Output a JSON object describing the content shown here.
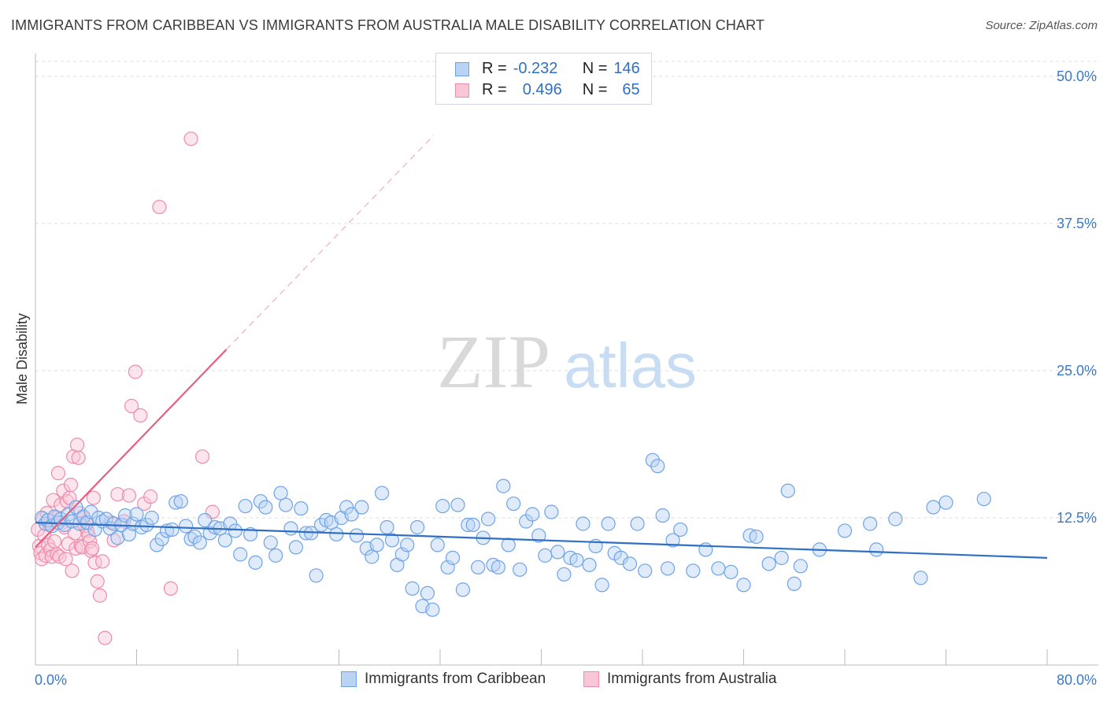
{
  "title": "IMMIGRANTS FROM CARIBBEAN VS IMMIGRANTS FROM AUSTRALIA MALE DISABILITY CORRELATION CHART",
  "source": "Source: ZipAtlas.com",
  "watermark": {
    "zip": "ZIP",
    "atlas": "atlas"
  },
  "stats": [
    {
      "r_label": "R =",
      "r": "-0.232",
      "n_label": "N =",
      "n": "146"
    },
    {
      "r_label": "R =",
      "r": "0.496",
      "n_label": "N =",
      "n": "65"
    }
  ],
  "legend": [
    {
      "label": "Immigrants from Caribbean",
      "color": "#6fa3e6",
      "fill": "#b9d3f4"
    },
    {
      "label": "Immigrants from Australia",
      "color": "#ee8cab",
      "fill": "#f8c6d6"
    }
  ],
  "chart_data": {
    "type": "scatter",
    "title": "IMMIGRANTS FROM CARIBBEAN VS IMMIGRANTS FROM AUSTRALIA MALE DISABILITY CORRELATION CHART",
    "xlabel": "",
    "ylabel": "Male Disability",
    "xlim": [
      0,
      80
    ],
    "ylim": [
      0,
      50
    ],
    "x_tick_labels": [
      "0.0%",
      "80.0%"
    ],
    "y_ticks": [
      12.5,
      25.0,
      37.5,
      50.0
    ],
    "y_tick_labels": [
      "12.5%",
      "25.0%",
      "37.5%",
      "50.0%"
    ],
    "grid": "horizontal dashed",
    "legend_position": "bottom",
    "series": [
      {
        "name": "Immigrants from Caribbean",
        "color": "#2f6fc4",
        "trend": {
          "x0": 0,
          "y0": 12.1,
          "x1": 80,
          "y1": 9.1
        },
        "points": [
          [
            0.5,
            12.5
          ],
          [
            0.8,
            12.0
          ],
          [
            1.0,
            12.3
          ],
          [
            1.3,
            11.8
          ],
          [
            1.5,
            12.6
          ],
          [
            1.8,
            12.1
          ],
          [
            2.0,
            12.4
          ],
          [
            2.3,
            11.9
          ],
          [
            2.6,
            12.8
          ],
          [
            2.9,
            12.2
          ],
          [
            3.2,
            13.4
          ],
          [
            3.5,
            12.0
          ],
          [
            3.8,
            12.6
          ],
          [
            4.1,
            12.1
          ],
          [
            4.4,
            13.0
          ],
          [
            4.7,
            11.5
          ],
          [
            5.0,
            12.5
          ],
          [
            5.3,
            12.2
          ],
          [
            5.6,
            12.4
          ],
          [
            5.9,
            11.6
          ],
          [
            6.2,
            12.0
          ],
          [
            6.5,
            10.8
          ],
          [
            6.8,
            11.9
          ],
          [
            7.1,
            12.7
          ],
          [
            7.4,
            11.1
          ],
          [
            7.7,
            12.0
          ],
          [
            8.0,
            12.8
          ],
          [
            8.4,
            11.7
          ],
          [
            8.8,
            11.9
          ],
          [
            9.2,
            12.5
          ],
          [
            9.6,
            10.2
          ],
          [
            10.0,
            10.7
          ],
          [
            10.4,
            11.4
          ],
          [
            10.8,
            11.5
          ],
          [
            11.1,
            13.8
          ],
          [
            11.5,
            13.9
          ],
          [
            11.9,
            11.8
          ],
          [
            12.3,
            10.7
          ],
          [
            12.6,
            10.9
          ],
          [
            13.0,
            10.4
          ],
          [
            13.4,
            12.3
          ],
          [
            13.8,
            11.2
          ],
          [
            14.2,
            11.7
          ],
          [
            14.6,
            11.6
          ],
          [
            15.0,
            10.6
          ],
          [
            15.4,
            12.0
          ],
          [
            15.8,
            11.4
          ],
          [
            16.2,
            9.4
          ],
          [
            16.6,
            13.5
          ],
          [
            17.0,
            11.1
          ],
          [
            17.4,
            8.7
          ],
          [
            17.8,
            13.9
          ],
          [
            18.2,
            13.4
          ],
          [
            18.6,
            10.4
          ],
          [
            19.0,
            9.3
          ],
          [
            19.4,
            14.6
          ],
          [
            19.8,
            13.6
          ],
          [
            20.2,
            11.6
          ],
          [
            20.6,
            10.0
          ],
          [
            21.0,
            13.3
          ],
          [
            21.4,
            11.2
          ],
          [
            21.8,
            11.2
          ],
          [
            22.2,
            7.6
          ],
          [
            22.6,
            11.9
          ],
          [
            23.0,
            12.3
          ],
          [
            23.4,
            12.1
          ],
          [
            23.8,
            11.1
          ],
          [
            24.2,
            12.5
          ],
          [
            24.6,
            13.4
          ],
          [
            25.0,
            12.8
          ],
          [
            25.4,
            11.0
          ],
          [
            25.8,
            13.4
          ],
          [
            26.2,
            9.9
          ],
          [
            26.6,
            9.2
          ],
          [
            27.0,
            10.2
          ],
          [
            27.4,
            14.6
          ],
          [
            27.8,
            11.7
          ],
          [
            28.2,
            10.6
          ],
          [
            28.6,
            8.5
          ],
          [
            29.0,
            9.4
          ],
          [
            29.4,
            10.2
          ],
          [
            29.8,
            6.5
          ],
          [
            30.2,
            11.7
          ],
          [
            30.6,
            5.0
          ],
          [
            31.0,
            6.1
          ],
          [
            31.4,
            4.7
          ],
          [
            31.8,
            10.2
          ],
          [
            32.2,
            13.5
          ],
          [
            32.6,
            8.3
          ],
          [
            33.0,
            9.1
          ],
          [
            33.4,
            13.6
          ],
          [
            33.8,
            6.4
          ],
          [
            34.2,
            11.9
          ],
          [
            34.6,
            11.9
          ],
          [
            35.0,
            8.3
          ],
          [
            35.4,
            10.8
          ],
          [
            35.8,
            12.4
          ],
          [
            36.2,
            8.5
          ],
          [
            36.6,
            8.3
          ],
          [
            37.0,
            15.2
          ],
          [
            37.4,
            10.2
          ],
          [
            37.8,
            13.7
          ],
          [
            38.3,
            8.1
          ],
          [
            38.8,
            12.2
          ],
          [
            39.3,
            12.8
          ],
          [
            39.8,
            11.0
          ],
          [
            40.3,
            9.3
          ],
          [
            40.8,
            13.0
          ],
          [
            41.3,
            9.6
          ],
          [
            41.8,
            7.7
          ],
          [
            42.3,
            9.1
          ],
          [
            42.8,
            8.9
          ],
          [
            43.3,
            12.0
          ],
          [
            43.8,
            8.5
          ],
          [
            44.3,
            10.1
          ],
          [
            44.8,
            6.8
          ],
          [
            45.3,
            12.0
          ],
          [
            45.8,
            9.5
          ],
          [
            46.3,
            9.1
          ],
          [
            47.0,
            8.6
          ],
          [
            47.6,
            12.0
          ],
          [
            48.2,
            8.0
          ],
          [
            48.8,
            17.4
          ],
          [
            49.2,
            16.9
          ],
          [
            49.6,
            12.7
          ],
          [
            50.0,
            8.2
          ],
          [
            50.4,
            10.6
          ],
          [
            51.0,
            11.5
          ],
          [
            52.0,
            8.0
          ],
          [
            53.0,
            9.8
          ],
          [
            54.0,
            8.2
          ],
          [
            55.0,
            7.9
          ],
          [
            56.0,
            6.8
          ],
          [
            56.5,
            11.0
          ],
          [
            57.0,
            10.9
          ],
          [
            58.0,
            8.6
          ],
          [
            59.0,
            9.1
          ],
          [
            59.5,
            14.8
          ],
          [
            60.0,
            6.9
          ],
          [
            60.5,
            8.4
          ],
          [
            62.0,
            9.8
          ],
          [
            64.0,
            11.4
          ],
          [
            66.0,
            12.0
          ],
          [
            66.5,
            9.8
          ],
          [
            68.0,
            12.4
          ],
          [
            70.0,
            7.4
          ],
          [
            71.0,
            13.4
          ],
          [
            72.0,
            13.8
          ],
          [
            75.0,
            14.1
          ]
        ]
      },
      {
        "name": "Immigrants from Australia",
        "color": "#e4607f",
        "trend": {
          "x0": 0,
          "y0": 10.0,
          "x1": 15.1,
          "y1": 26.8
        },
        "trend_dashed_to": {
          "x": 31.5,
          "y": 45.0
        },
        "points": [
          [
            0.2,
            11.5
          ],
          [
            0.3,
            10.1
          ],
          [
            0.4,
            9.5
          ],
          [
            0.5,
            9.0
          ],
          [
            0.6,
            12.4
          ],
          [
            0.7,
            11.0
          ],
          [
            0.8,
            9.3
          ],
          [
            0.9,
            12.9
          ],
          [
            1.0,
            10.2
          ],
          [
            1.1,
            11.9
          ],
          [
            1.2,
            9.8
          ],
          [
            1.3,
            9.2
          ],
          [
            1.4,
            14.0
          ],
          [
            1.5,
            10.5
          ],
          [
            1.6,
            12.5
          ],
          [
            1.7,
            9.4
          ],
          [
            1.8,
            16.3
          ],
          [
            1.9,
            9.2
          ],
          [
            2.0,
            13.6
          ],
          [
            2.1,
            12.1
          ],
          [
            2.2,
            14.8
          ],
          [
            2.3,
            11.7
          ],
          [
            2.4,
            9.0
          ],
          [
            2.5,
            13.9
          ],
          [
            2.6,
            10.3
          ],
          [
            2.7,
            14.2
          ],
          [
            2.8,
            15.3
          ],
          [
            2.9,
            8.0
          ],
          [
            3.0,
            17.7
          ],
          [
            3.1,
            11.2
          ],
          [
            3.2,
            9.9
          ],
          [
            3.3,
            18.7
          ],
          [
            3.4,
            17.6
          ],
          [
            3.5,
            12.9
          ],
          [
            3.6,
            10.1
          ],
          [
            3.7,
            10.0
          ],
          [
            3.8,
            12.5
          ],
          [
            3.9,
            11.8
          ],
          [
            4.0,
            12.1
          ],
          [
            4.1,
            11.4
          ],
          [
            4.2,
            11.0
          ],
          [
            4.3,
            10.5
          ],
          [
            4.4,
            9.7
          ],
          [
            4.5,
            9.9
          ],
          [
            4.6,
            14.2
          ],
          [
            4.7,
            8.7
          ],
          [
            4.9,
            7.1
          ],
          [
            5.1,
            5.9
          ],
          [
            5.3,
            8.8
          ],
          [
            5.5,
            2.3
          ],
          [
            6.0,
            12.1
          ],
          [
            6.2,
            10.6
          ],
          [
            6.5,
            14.5
          ],
          [
            7.0,
            12.2
          ],
          [
            7.4,
            14.4
          ],
          [
            7.6,
            22.0
          ],
          [
            7.9,
            24.9
          ],
          [
            8.3,
            21.2
          ],
          [
            8.6,
            13.7
          ],
          [
            9.1,
            14.3
          ],
          [
            9.8,
            38.9
          ],
          [
            10.7,
            6.5
          ],
          [
            12.3,
            44.7
          ],
          [
            13.2,
            17.7
          ],
          [
            14.0,
            13.0
          ]
        ]
      }
    ]
  }
}
